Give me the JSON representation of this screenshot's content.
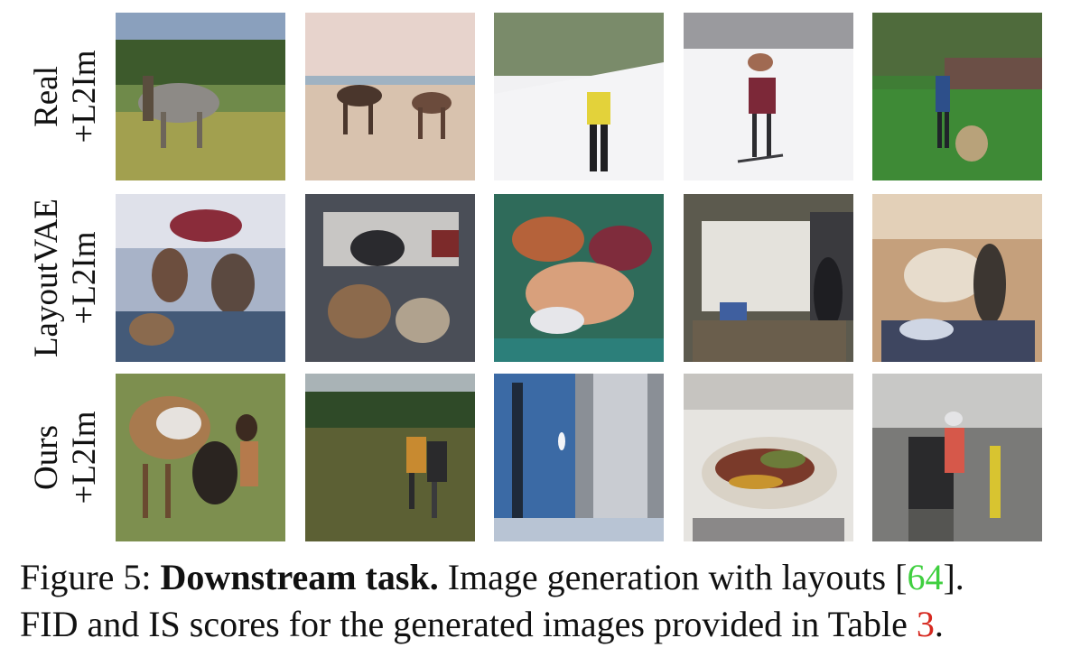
{
  "figure": {
    "rows": [
      {
        "label_lines": [
          "Real",
          "+L2Im"
        ],
        "images": [
          "zebra-like animal on grass field",
          "horses on sandy beach",
          "skier in yellow jacket on snow",
          "skier in red on snowy slope",
          "person on grassy field with trees"
        ]
      },
      {
        "label_lines": [
          "LayoutVAE",
          "+L2Im"
        ],
        "images": [
          "distorted scene with figures",
          "distorted cluttered scene",
          "colorful distorted scene",
          "distorted indoor scene",
          "distorted scene with figures"
        ]
      },
      {
        "label_lines": [
          "Ours",
          "+L2Im"
        ],
        "images": [
          "horse and person on grass",
          "people in grass field",
          "tall tower against blue sky",
          "plate of food",
          "person in kitchen"
        ]
      }
    ],
    "caption": {
      "prefix": "Figure 5: ",
      "bold": "Downstream task.",
      "line1_text": " Image generation with layouts [",
      "ref1": "64",
      "line1_end": "].",
      "line2_text": "FID and IS scores for the generated images provided in Table ",
      "ref2": "3",
      "line2_end": "."
    },
    "colors": {
      "ref_green": "#3fcf3f",
      "ref_red": "#d6281f"
    }
  }
}
